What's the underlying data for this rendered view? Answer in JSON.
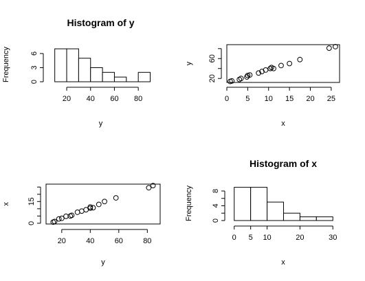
{
  "chart_data": [
    {
      "id": "p1",
      "type": "histogram",
      "title": "Histogram of y",
      "xlabel": "y",
      "ylabel": "Frequency",
      "bins": [
        10,
        20,
        30,
        40,
        50,
        60,
        70,
        80,
        90
      ],
      "counts": [
        7,
        7,
        5,
        3,
        2,
        1,
        0,
        2
      ],
      "xticks": [
        20,
        40,
        60,
        80
      ],
      "yticks": [
        0,
        3,
        6
      ],
      "xlim": [
        5,
        92
      ],
      "ylim": [
        0,
        7.3
      ]
    },
    {
      "id": "p2",
      "type": "scatter",
      "title": "",
      "xlabel": "x",
      "ylabel": "y",
      "xticks": [
        0,
        5,
        10,
        15,
        20,
        25
      ],
      "yticks": [
        20,
        60
      ],
      "yticks_extra": [
        40,
        80
      ],
      "xlim": [
        0,
        27
      ],
      "ylim": [
        12,
        88
      ],
      "points": [
        {
          "x": 0.8,
          "y": 14
        },
        {
          "x": 1.2,
          "y": 15
        },
        {
          "x": 3.0,
          "y": 18
        },
        {
          "x": 3.4,
          "y": 20
        },
        {
          "x": 4.8,
          "y": 23
        },
        {
          "x": 5.0,
          "y": 26
        },
        {
          "x": 5.5,
          "y": 27
        },
        {
          "x": 7.6,
          "y": 31
        },
        {
          "x": 8.4,
          "y": 34
        },
        {
          "x": 9.3,
          "y": 37
        },
        {
          "x": 10.4,
          "y": 40
        },
        {
          "x": 10.7,
          "y": 42
        },
        {
          "x": 11.2,
          "y": 40
        },
        {
          "x": 13.0,
          "y": 46
        },
        {
          "x": 15.0,
          "y": 50
        },
        {
          "x": 17.5,
          "y": 58
        },
        {
          "x": 24.5,
          "y": 81
        },
        {
          "x": 26.0,
          "y": 84
        }
      ]
    },
    {
      "id": "p3",
      "type": "scatter",
      "title": "",
      "xlabel": "y",
      "ylabel": "x",
      "xticks": [
        20,
        40,
        60,
        80
      ],
      "yticks": [
        0,
        15
      ],
      "yticks_extra": [
        5,
        10,
        20,
        25
      ],
      "xlim": [
        9,
        89
      ],
      "ylim": [
        -0.5,
        27
      ],
      "points": [
        {
          "x": 14,
          "y": 0.8
        },
        {
          "x": 15,
          "y": 1.2
        },
        {
          "x": 18,
          "y": 3.0
        },
        {
          "x": 20,
          "y": 3.4
        },
        {
          "x": 23,
          "y": 4.8
        },
        {
          "x": 26,
          "y": 5.0
        },
        {
          "x": 27,
          "y": 5.5
        },
        {
          "x": 31,
          "y": 7.6
        },
        {
          "x": 34,
          "y": 8.4
        },
        {
          "x": 37,
          "y": 9.3
        },
        {
          "x": 40,
          "y": 10.4
        },
        {
          "x": 42,
          "y": 10.7
        },
        {
          "x": 40,
          "y": 11.2
        },
        {
          "x": 46,
          "y": 13.0
        },
        {
          "x": 50,
          "y": 15.0
        },
        {
          "x": 58,
          "y": 17.5
        },
        {
          "x": 81,
          "y": 24.5
        },
        {
          "x": 84,
          "y": 26.0
        }
      ]
    },
    {
      "id": "p4",
      "type": "histogram",
      "title": "Histogram of x",
      "xlabel": "x",
      "ylabel": "Frequency",
      "bins": [
        0,
        5,
        10,
        15,
        20,
        25,
        30
      ],
      "counts": [
        9,
        9,
        5,
        2,
        1,
        1
      ],
      "xticks": [
        0,
        5,
        10,
        20,
        30
      ],
      "yticks": [
        0,
        4,
        8
      ],
      "yticks_extra": [
        2,
        6
      ],
      "xlim": [
        -1.2,
        31
      ],
      "ylim": [
        0,
        9.3
      ]
    }
  ]
}
